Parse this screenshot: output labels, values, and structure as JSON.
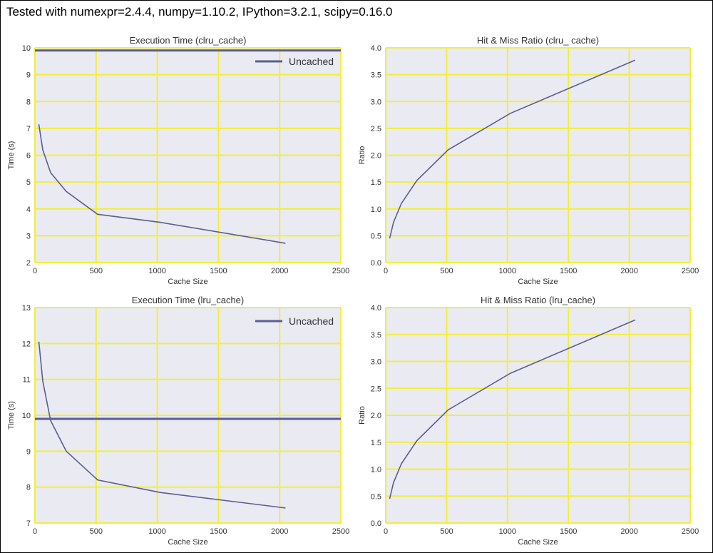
{
  "header": {
    "text": "Tested with numexpr=2.4.4, numpy=1.10.2, IPython=3.2.1, scipy=0.16.0"
  },
  "colors": {
    "plot_background": "#eaeaf2",
    "grid": "#f2ee3c",
    "line": "#5b5d92",
    "label_text": "#333333"
  },
  "chart_data": [
    {
      "type": "line",
      "title": "Execution Time (clru_cache)",
      "xlabel": "Cache Size",
      "ylabel": "Time (s)",
      "xlim": [
        0,
        2500
      ],
      "ylim": [
        2,
        10
      ],
      "xticks": [
        0,
        500,
        1000,
        1500,
        2000,
        2500
      ],
      "yticks": [
        2,
        3,
        4,
        5,
        6,
        7,
        8,
        9,
        10
      ],
      "xtick_labels": [
        "0",
        "500",
        "1000",
        "1500",
        "2000",
        "2500"
      ],
      "ytick_labels": [
        "2",
        "3",
        "4",
        "5",
        "6",
        "7",
        "8",
        "9",
        "10"
      ],
      "series": [
        {
          "x": [
            32,
            64,
            128,
            256,
            512,
            1024,
            2048
          ],
          "y": [
            7.15,
            6.2,
            5.35,
            4.65,
            3.8,
            3.5,
            2.72
          ]
        }
      ],
      "hlines": [
        {
          "name": "Uncached",
          "y": 9.9
        }
      ],
      "legend": {
        "position": "top-right",
        "entries": [
          "Uncached"
        ]
      },
      "grid": true
    },
    {
      "type": "line",
      "title": "Hit & Miss Ratio (clru_ cache)",
      "xlabel": "Cache Size",
      "ylabel": "Ratio",
      "xlim": [
        0,
        2500
      ],
      "ylim": [
        0,
        4
      ],
      "xticks": [
        0,
        500,
        1000,
        1500,
        2000,
        2500
      ],
      "yticks": [
        0,
        0.5,
        1,
        1.5,
        2,
        2.5,
        3,
        3.5,
        4
      ],
      "xtick_labels": [
        "0",
        "500",
        "1000",
        "1500",
        "2000",
        "2500"
      ],
      "ytick_labels": [
        "0.0",
        "0.5",
        "1.0",
        "1.5",
        "2.0",
        "2.5",
        "3.0",
        "3.5",
        "4.0"
      ],
      "series": [
        {
          "x": [
            32,
            64,
            128,
            256,
            512,
            1024,
            2048
          ],
          "y": [
            0.45,
            0.75,
            1.1,
            1.53,
            2.1,
            2.78,
            3.77
          ]
        }
      ],
      "hlines": [],
      "legend": null,
      "grid": true
    },
    {
      "type": "line",
      "title": "Execution Time (lru_cache)",
      "xlabel": "Cache Size",
      "ylabel": "Time (s)",
      "xlim": [
        0,
        2500
      ],
      "ylim": [
        7,
        13
      ],
      "xticks": [
        0,
        500,
        1000,
        1500,
        2000,
        2500
      ],
      "yticks": [
        7,
        8,
        9,
        10,
        11,
        12,
        13
      ],
      "xtick_labels": [
        "0",
        "500",
        "1000",
        "1500",
        "2000",
        "2500"
      ],
      "ytick_labels": [
        "7",
        "8",
        "9",
        "10",
        "11",
        "12",
        "13"
      ],
      "series": [
        {
          "x": [
            32,
            64,
            128,
            256,
            512,
            1024,
            2048
          ],
          "y": [
            12.05,
            10.95,
            9.85,
            9.0,
            8.2,
            7.85,
            7.42
          ]
        }
      ],
      "hlines": [
        {
          "name": "Uncached",
          "y": 9.9
        }
      ],
      "legend": {
        "position": "top-right",
        "entries": [
          "Uncached"
        ]
      },
      "grid": true
    },
    {
      "type": "line",
      "title": "Hit & Miss Ratio (lru_cache)",
      "xlabel": "Cache Size",
      "ylabel": "Ratio",
      "xlim": [
        0,
        2500
      ],
      "ylim": [
        0,
        4
      ],
      "xticks": [
        0,
        500,
        1000,
        1500,
        2000,
        2500
      ],
      "yticks": [
        0,
        0.5,
        1,
        1.5,
        2,
        2.5,
        3,
        3.5,
        4
      ],
      "xtick_labels": [
        "0",
        "500",
        "1000",
        "1500",
        "2000",
        "2500"
      ],
      "ytick_labels": [
        "0.0",
        "0.5",
        "1.0",
        "1.5",
        "2.0",
        "2.5",
        "3.0",
        "3.5",
        "4.0"
      ],
      "series": [
        {
          "x": [
            32,
            64,
            128,
            256,
            512,
            1024,
            2048
          ],
          "y": [
            0.45,
            0.75,
            1.1,
            1.53,
            2.1,
            2.78,
            3.77
          ]
        }
      ],
      "hlines": [],
      "legend": null,
      "grid": true
    }
  ]
}
